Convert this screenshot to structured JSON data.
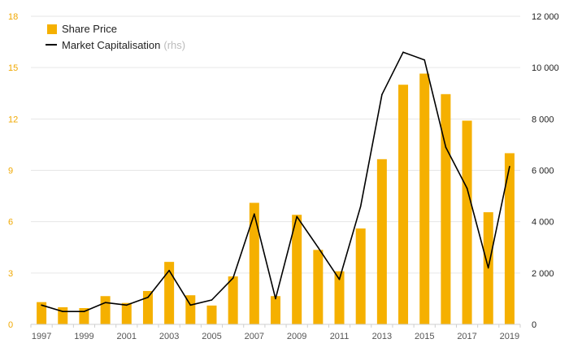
{
  "chart_data": {
    "type": "bar",
    "x": [
      "1997",
      "1998",
      "1999",
      "2000",
      "2001",
      "2002",
      "2003",
      "2004",
      "2005",
      "2006",
      "2007",
      "2008",
      "2009",
      "2010",
      "2011",
      "2012",
      "2013",
      "2014",
      "2015",
      "2016",
      "2017",
      "2018",
      "2019"
    ],
    "x_tick_labels": [
      "1997",
      "1999",
      "2001",
      "2003",
      "2005",
      "2007",
      "2009",
      "2011",
      "2013",
      "2015",
      "2017",
      "2019"
    ],
    "series": [
      {
        "name": "Share Price",
        "type": "bar",
        "axis": "left",
        "color": "#f5b000",
        "values": [
          1.3,
          1.0,
          0.95,
          1.65,
          1.25,
          1.95,
          3.65,
          1.7,
          1.1,
          2.8,
          7.1,
          1.65,
          6.4,
          4.35,
          3.1,
          5.6,
          9.65,
          14.0,
          14.65,
          13.45,
          11.9,
          6.55,
          10.0
        ]
      },
      {
        "name": "Market Capitalisation",
        "name_suffix": "(rhs)",
        "type": "line",
        "axis": "right",
        "color": "#000000",
        "values": [
          750,
          500,
          500,
          850,
          750,
          1050,
          2100,
          750,
          950,
          1800,
          4300,
          1000,
          4200,
          3000,
          1750,
          4600,
          8950,
          10600,
          10300,
          6900,
          5300,
          2200,
          6150
        ]
      }
    ],
    "y_left": {
      "ylim": [
        0,
        18
      ],
      "ticks": [
        0,
        3,
        6,
        9,
        12,
        15,
        18
      ],
      "tick_labels": [
        "0",
        "3",
        "6",
        "9",
        "12",
        "15",
        "18"
      ],
      "color": "#f0a800"
    },
    "y_right": {
      "ylim": [
        0,
        12000
      ],
      "ticks": [
        0,
        2000,
        4000,
        6000,
        8000,
        10000,
        12000
      ],
      "tick_labels": [
        "0",
        "2 000",
        "4 000",
        "6 000",
        "8 000",
        "10 000",
        "12 000"
      ]
    },
    "grid": true,
    "legend_position": "top-left"
  }
}
